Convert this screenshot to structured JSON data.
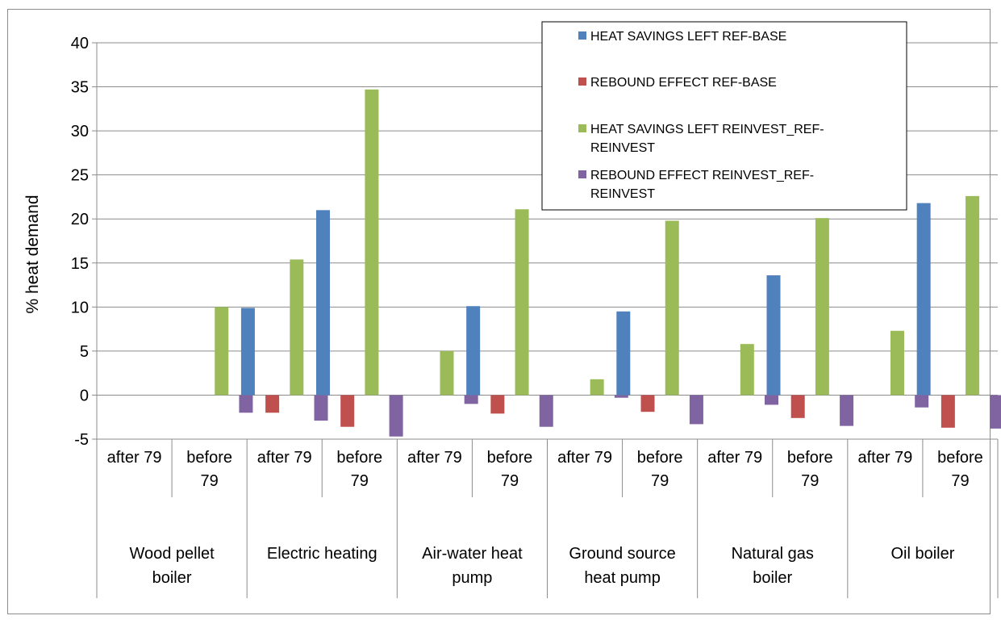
{
  "chart_data": {
    "type": "bar",
    "ylabel": "% heat demand",
    "xlabel": "",
    "title": "",
    "ylim": [
      -5,
      40
    ],
    "yticks": [
      "40",
      "35",
      "30",
      "25",
      "20",
      "15",
      "10",
      "5",
      "0",
      "-5"
    ],
    "ytick_values": [
      40,
      35,
      30,
      25,
      20,
      15,
      10,
      5,
      0,
      -5
    ],
    "grid": "horizontal",
    "legend_position": "top-right",
    "groups": [
      {
        "label_lines": [
          "Wood pellet",
          "boiler"
        ],
        "subcats": [
          [
            "after 79"
          ],
          [
            "before",
            "79"
          ]
        ]
      },
      {
        "label_lines": [
          "Electric heating"
        ],
        "subcats": [
          [
            "after 79"
          ],
          [
            "before",
            "79"
          ]
        ]
      },
      {
        "label_lines": [
          "Air-water heat",
          "pump"
        ],
        "subcats": [
          [
            "after 79"
          ],
          [
            "before",
            "79"
          ]
        ]
      },
      {
        "label_lines": [
          "Ground source",
          "heat pump"
        ],
        "subcats": [
          [
            "after 79"
          ],
          [
            "before",
            "79"
          ]
        ]
      },
      {
        "label_lines": [
          "Natural gas",
          "boiler"
        ],
        "subcats": [
          [
            "after 79"
          ],
          [
            "before",
            "79"
          ]
        ]
      },
      {
        "label_lines": [
          "Oil boiler"
        ],
        "subcats": [
          [
            "after 79"
          ],
          [
            "before",
            "79"
          ]
        ]
      }
    ],
    "categories": [
      "Wood pellet boiler / after 79",
      "Wood pellet boiler / before 79",
      "Electric heating / after 79",
      "Electric heating / before 79",
      "Air-water heat pump / after 79",
      "Air-water heat pump / before 79",
      "Ground source heat pump / after 79",
      "Ground source heat pump / before 79",
      "Natural gas boiler / after 79",
      "Natural gas boiler / before 79",
      "Oil boiler / after 79",
      "Oil boiler / before 79"
    ],
    "series": [
      {
        "name": "HEAT SAVINGS LEFT REF-BASE",
        "legend_lines": [
          "HEAT SAVINGS LEFT REF-BASE"
        ],
        "color": "#4f81bd",
        "values": [
          0,
          0,
          9.9,
          21.0,
          0,
          10.1,
          0,
          9.5,
          0,
          13.6,
          0,
          21.8
        ]
      },
      {
        "name": "REBOUND EFFECT REF-BASE",
        "legend_lines": [
          "REBOUND EFFECT REF-BASE"
        ],
        "color": "#c0504d",
        "values": [
          0,
          0,
          -2.0,
          -3.6,
          0,
          -2.1,
          0,
          -1.9,
          0,
          -2.6,
          0,
          -3.7
        ]
      },
      {
        "name": "HEAT SAVINGS LEFT REINVEST_REF-REINVEST",
        "legend_lines": [
          "HEAT SAVINGS LEFT REINVEST_REF-",
          "REINVEST"
        ],
        "color": "#9bbb59",
        "values": [
          0,
          10.0,
          15.4,
          34.7,
          5.0,
          21.1,
          1.8,
          19.8,
          5.8,
          20.1,
          7.3,
          22.6
        ]
      },
      {
        "name": "REBOUND EFFECT REINVEST_REF-REINVEST",
        "legend_lines": [
          "REBOUND EFFECT REINVEST_REF-",
          "REINVEST"
        ],
        "color": "#8064a2",
        "values": [
          0,
          -2.0,
          -2.9,
          -4.7,
          -1.0,
          -3.6,
          -0.3,
          -3.3,
          -1.1,
          -3.5,
          -1.4,
          -3.8
        ]
      }
    ]
  }
}
